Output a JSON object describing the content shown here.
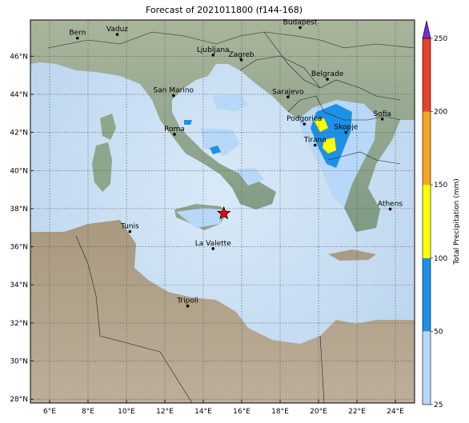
{
  "title": "Forecast of 2021011800 (f144-168)",
  "map": {
    "lon_range": [
      5,
      25
    ],
    "lat_range": [
      27.8,
      47.9
    ],
    "lon_ticks": [
      6,
      8,
      10,
      12,
      14,
      16,
      18,
      20,
      22,
      24
    ],
    "lat_ticks": [
      28,
      30,
      32,
      34,
      36,
      38,
      40,
      42,
      44,
      46
    ],
    "lon_tick_labels": [
      "6°E",
      "8°E",
      "10°E",
      "12°E",
      "14°E",
      "16°E",
      "18°E",
      "20°E",
      "22°E",
      "24°E"
    ],
    "lat_tick_labels": [
      "28°N",
      "30°N",
      "32°N",
      "34°N",
      "36°N",
      "38°N",
      "40°N",
      "42°N",
      "44°N",
      "46°N"
    ],
    "gridlines": true,
    "cities": [
      {
        "name": "Bern",
        "lon": 7.45,
        "lat": 46.95
      },
      {
        "name": "Vaduz",
        "lon": 9.52,
        "lat": 47.14
      },
      {
        "name": "Budapest",
        "lon": 19.04,
        "lat": 47.5
      },
      {
        "name": "Ljubljana",
        "lon": 14.51,
        "lat": 46.06
      },
      {
        "name": "Zagreb",
        "lon": 15.98,
        "lat": 45.81
      },
      {
        "name": "Belgrade",
        "lon": 20.46,
        "lat": 44.79
      },
      {
        "name": "San Marino",
        "lon": 12.45,
        "lat": 43.94
      },
      {
        "name": "Sarajevo",
        "lon": 18.41,
        "lat": 43.86
      },
      {
        "name": "Podgorica",
        "lon": 19.26,
        "lat": 42.44
      },
      {
        "name": "Skopje",
        "lon": 21.43,
        "lat": 42.0
      },
      {
        "name": "Sofia",
        "lon": 23.32,
        "lat": 42.7
      },
      {
        "name": "Roma",
        "lon": 12.5,
        "lat": 41.9
      },
      {
        "name": "Tirana",
        "lon": 19.82,
        "lat": 41.33
      },
      {
        "name": "Athens",
        "lon": 23.73,
        "lat": 37.98
      },
      {
        "name": "Tunis",
        "lon": 10.18,
        "lat": 36.8
      },
      {
        "name": "La Valette",
        "lon": 14.51,
        "lat": 35.9
      },
      {
        "name": "Tripoli",
        "lon": 13.19,
        "lat": 32.89
      }
    ],
    "marker": {
      "type": "star",
      "lon": 15.07,
      "lat": 37.75,
      "color": "#ff0000"
    }
  },
  "colorbar": {
    "label": "Total Precipitation (mm)",
    "ticks": [
      25,
      50,
      100,
      150,
      200,
      250
    ],
    "tick_labels": [
      "25",
      "50",
      "100",
      "150",
      "200",
      "250"
    ],
    "colors": [
      "#b7d8f8",
      "#1e90e6",
      "#ffff00",
      "#f5a623",
      "#e8402a"
    ],
    "extend_color": "#7b2bd6"
  },
  "colors": {
    "sea": "#cfe3f5",
    "land_north": "#8fa88a",
    "land_south": "#b3a089",
    "border": "#222222"
  }
}
